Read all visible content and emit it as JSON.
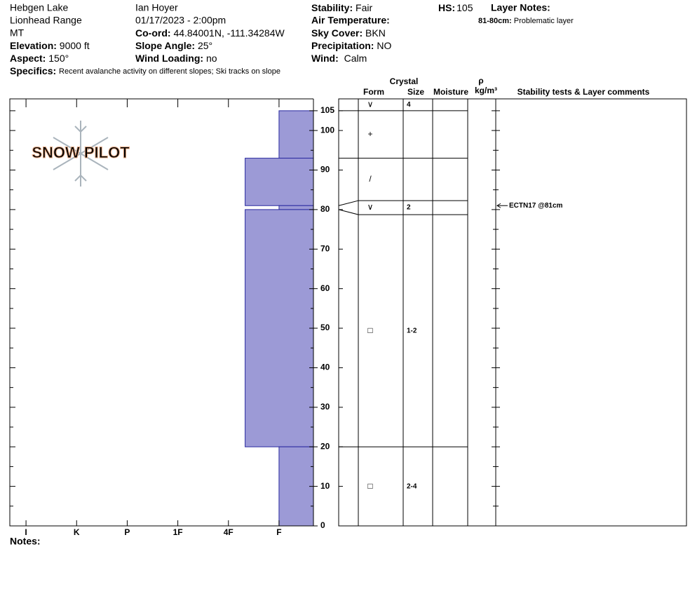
{
  "header": {
    "location": [
      "Hebgen Lake",
      "Lionhead Range",
      "MT"
    ],
    "observer": "Ian Hoyer",
    "datetime": "01/17/2023 - 2:00pm",
    "elevation": {
      "label": "Elevation:",
      "value": "9000 ft"
    },
    "aspect": {
      "label": "Aspect:",
      "value": "150°"
    },
    "coord": {
      "label": "Co-ord:",
      "value": "44.84001N, -111.34284W"
    },
    "slope_angle": {
      "label": "Slope Angle:",
      "value": "25°"
    },
    "wind_loading": {
      "label": "Wind Loading:",
      "value": "no"
    },
    "stability": {
      "label": "Stability:",
      "value": "Fair"
    },
    "air_temperature": {
      "label": "Air Temperature:"
    },
    "sky_cover": {
      "label": "Sky Cover:",
      "value": "BKN"
    },
    "precipitation": {
      "label": "Precipitation:",
      "value": "NO"
    },
    "wind": {
      "label": "Wind:",
      "value": "Calm"
    },
    "hs": {
      "label": "HS:",
      "value": "105"
    },
    "layer_notes": {
      "label": "Layer Notes:",
      "depth": "81-80cm:",
      "note": "Problematic layer"
    },
    "specifics": {
      "label": "Specifics:",
      "value": "Recent avalanche activity on different slopes;  Ski tracks on slope"
    },
    "logo": "SNOW PILOT",
    "notes_label": "Notes:"
  },
  "chart_data": {
    "type": "snow-profile",
    "ylim": [
      0,
      108
    ],
    "yticks": [
      0,
      10,
      20,
      30,
      40,
      50,
      60,
      70,
      80,
      90,
      100,
      105
    ],
    "minor_yticks": [
      5,
      15,
      25,
      35,
      45,
      55,
      65,
      75,
      85,
      95
    ],
    "xlim": [
      6.32,
      0.32
    ],
    "xticks": [
      {
        "value": 6,
        "label": "I"
      },
      {
        "value": 5,
        "label": "K"
      },
      {
        "value": 4,
        "label": "P"
      },
      {
        "value": 3,
        "label": "1F"
      },
      {
        "value": 2,
        "label": "4F"
      },
      {
        "value": 1,
        "label": "F"
      }
    ],
    "color": "#9c9ad6",
    "layers": [
      {
        "top": 105,
        "bottom": 93,
        "hardness": 1
      },
      {
        "top": 93,
        "bottom": 81,
        "hardness": 1.67
      },
      {
        "top": 81,
        "bottom": 80,
        "hardness": 1
      },
      {
        "top": 80,
        "bottom": 20,
        "hardness": 1.67
      },
      {
        "top": 20,
        "bottom": 0,
        "hardness": 1
      }
    ],
    "columns": {
      "crystal": "Crystal",
      "form": "Form",
      "size": "Size",
      "moisture": "Moisture",
      "density_symbol": "ρ",
      "density_unit": "kg/m³",
      "comments": "Stability tests & Layer comments"
    },
    "row_boundaries": [
      105,
      93,
      81,
      80,
      20
    ],
    "rows": [
      {
        "form": "∨",
        "size": "4"
      },
      {
        "form": "+"
      },
      {
        "form": "/"
      },
      {
        "form": "∨",
        "size": "2"
      },
      {
        "form": "□",
        "size": "1-2"
      },
      {
        "form": "□",
        "size": "2-4"
      }
    ],
    "annotations": [
      {
        "depth": 81,
        "text": "ECTN17 @81cm"
      }
    ]
  }
}
